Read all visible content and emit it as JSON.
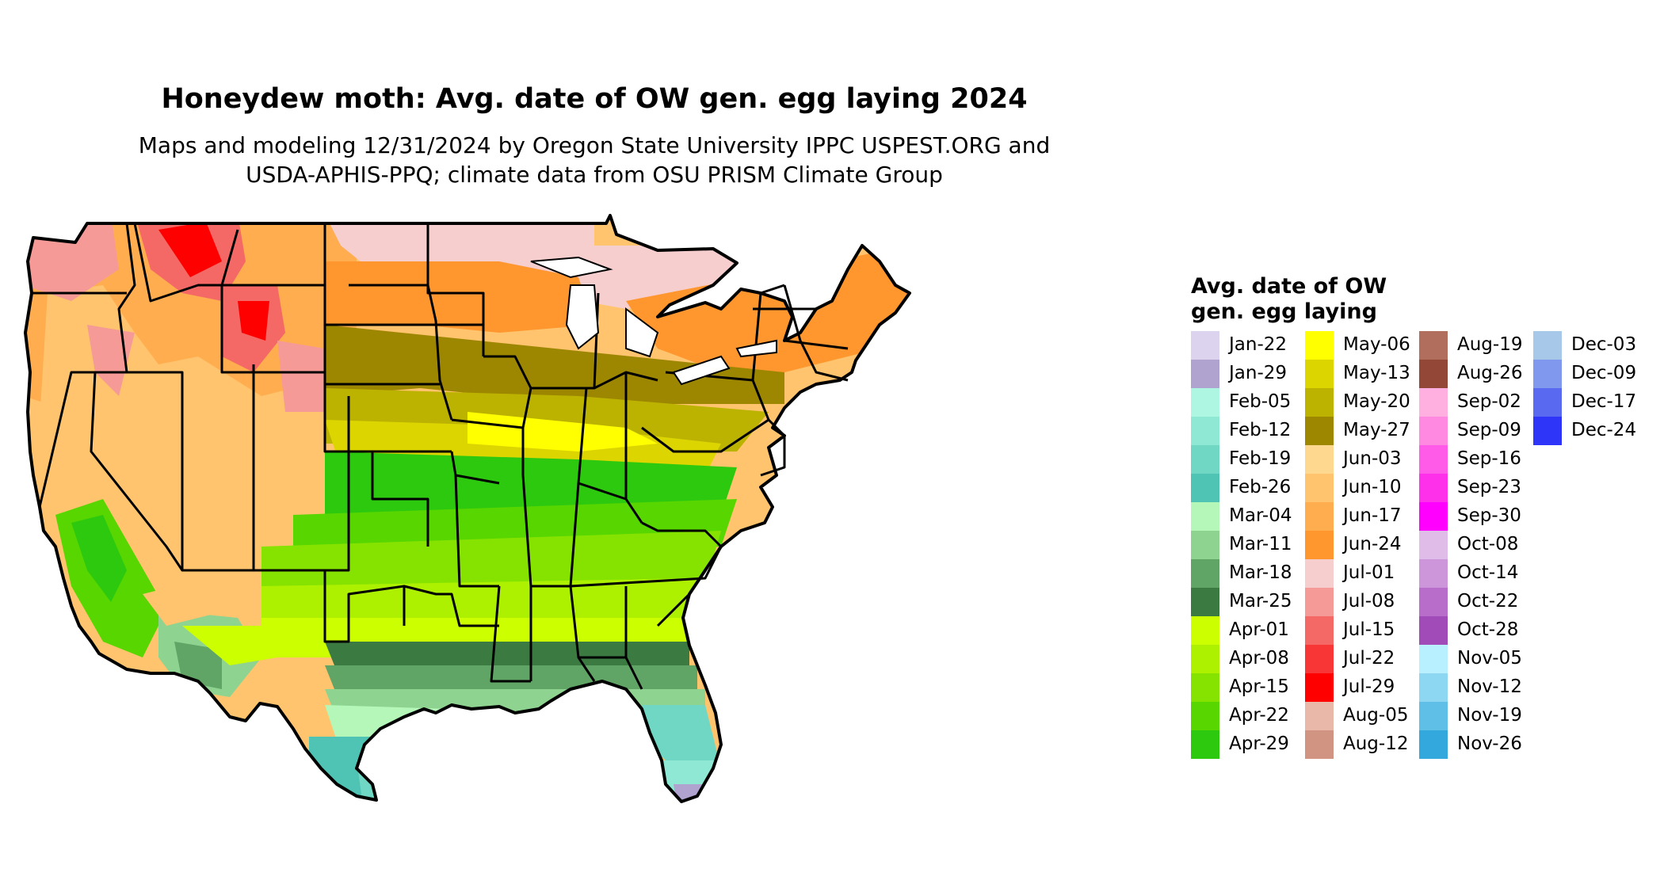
{
  "title": "Honeydew moth: Avg. date of OW gen. egg laying 2024",
  "subtitle_line1": "Maps and modeling 12/31/2024 by Oregon State University IPPC USPEST.ORG and",
  "subtitle_line2": "USDA-APHIS-PPQ; climate data from OSU PRISM Climate Group",
  "legend": {
    "title_line1": "Avg. date of OW",
    "title_line2": "gen. egg laying",
    "columns": [
      [
        {
          "label": "Jan-22",
          "color": "#dcd3ee"
        },
        {
          "label": "Jan-29",
          "color": "#b1a3cf"
        },
        {
          "label": "Feb-05",
          "color": "#aef5e2"
        },
        {
          "label": "Feb-12",
          "color": "#8fe8d4"
        },
        {
          "label": "Feb-19",
          "color": "#70d7c4"
        },
        {
          "label": "Feb-26",
          "color": "#4fc4b4"
        },
        {
          "label": "Mar-04",
          "color": "#b4f7b8"
        },
        {
          "label": "Mar-11",
          "color": "#8ed390"
        },
        {
          "label": "Mar-18",
          "color": "#61a566"
        },
        {
          "label": "Mar-25",
          "color": "#3b7a41"
        },
        {
          "label": "Apr-01",
          "color": "#ccff00"
        },
        {
          "label": "Apr-08",
          "color": "#adf000"
        },
        {
          "label": "Apr-15",
          "color": "#86e300"
        },
        {
          "label": "Apr-22",
          "color": "#57d600"
        },
        {
          "label": "Apr-29",
          "color": "#2dc90f"
        }
      ],
      [
        {
          "label": "May-06",
          "color": "#ffff00"
        },
        {
          "label": "May-13",
          "color": "#dcd500"
        },
        {
          "label": "May-20",
          "color": "#bcb300"
        },
        {
          "label": "May-27",
          "color": "#9e8700"
        },
        {
          "label": "Jun-03",
          "color": "#ffd890"
        },
        {
          "label": "Jun-10",
          "color": "#ffc46d"
        },
        {
          "label": "Jun-17",
          "color": "#ffad4e"
        },
        {
          "label": "Jun-24",
          "color": "#ff962e"
        },
        {
          "label": "Jul-01",
          "color": "#f6cece"
        },
        {
          "label": "Jul-08",
          "color": "#f59a96"
        },
        {
          "label": "Jul-15",
          "color": "#f46866"
        },
        {
          "label": "Jul-22",
          "color": "#f83636"
        },
        {
          "label": "Jul-29",
          "color": "#ff0000"
        },
        {
          "label": "Aug-05",
          "color": "#e9b8a8"
        },
        {
          "label": "Aug-12",
          "color": "#d19483"
        }
      ],
      [
        {
          "label": "Aug-19",
          "color": "#b26e5c"
        },
        {
          "label": "Aug-26",
          "color": "#934737"
        },
        {
          "label": "Sep-02",
          "color": "#ffb0e0"
        },
        {
          "label": "Sep-09",
          "color": "#ff88e0"
        },
        {
          "label": "Sep-16",
          "color": "#ff5ae8"
        },
        {
          "label": "Sep-23",
          "color": "#ff30ea"
        },
        {
          "label": "Sep-30",
          "color": "#ff00ff"
        },
        {
          "label": "Oct-08",
          "color": "#e0bde9"
        },
        {
          "label": "Oct-14",
          "color": "#cd96da"
        },
        {
          "label": "Oct-22",
          "color": "#b86dca"
        },
        {
          "label": "Oct-28",
          "color": "#a04bb8"
        },
        {
          "label": "Nov-05",
          "color": "#b8f0ff"
        },
        {
          "label": "Nov-12",
          "color": "#8ed7f2"
        },
        {
          "label": "Nov-19",
          "color": "#5fbfe6"
        },
        {
          "label": "Nov-26",
          "color": "#33a8dd"
        }
      ],
      [
        {
          "label": "Dec-03",
          "color": "#a8c8ea"
        },
        {
          "label": "Dec-09",
          "color": "#8098ee"
        },
        {
          "label": "Dec-17",
          "color": "#5a6af0"
        },
        {
          "label": "Dec-24",
          "color": "#2f35f8"
        }
      ]
    ]
  }
}
